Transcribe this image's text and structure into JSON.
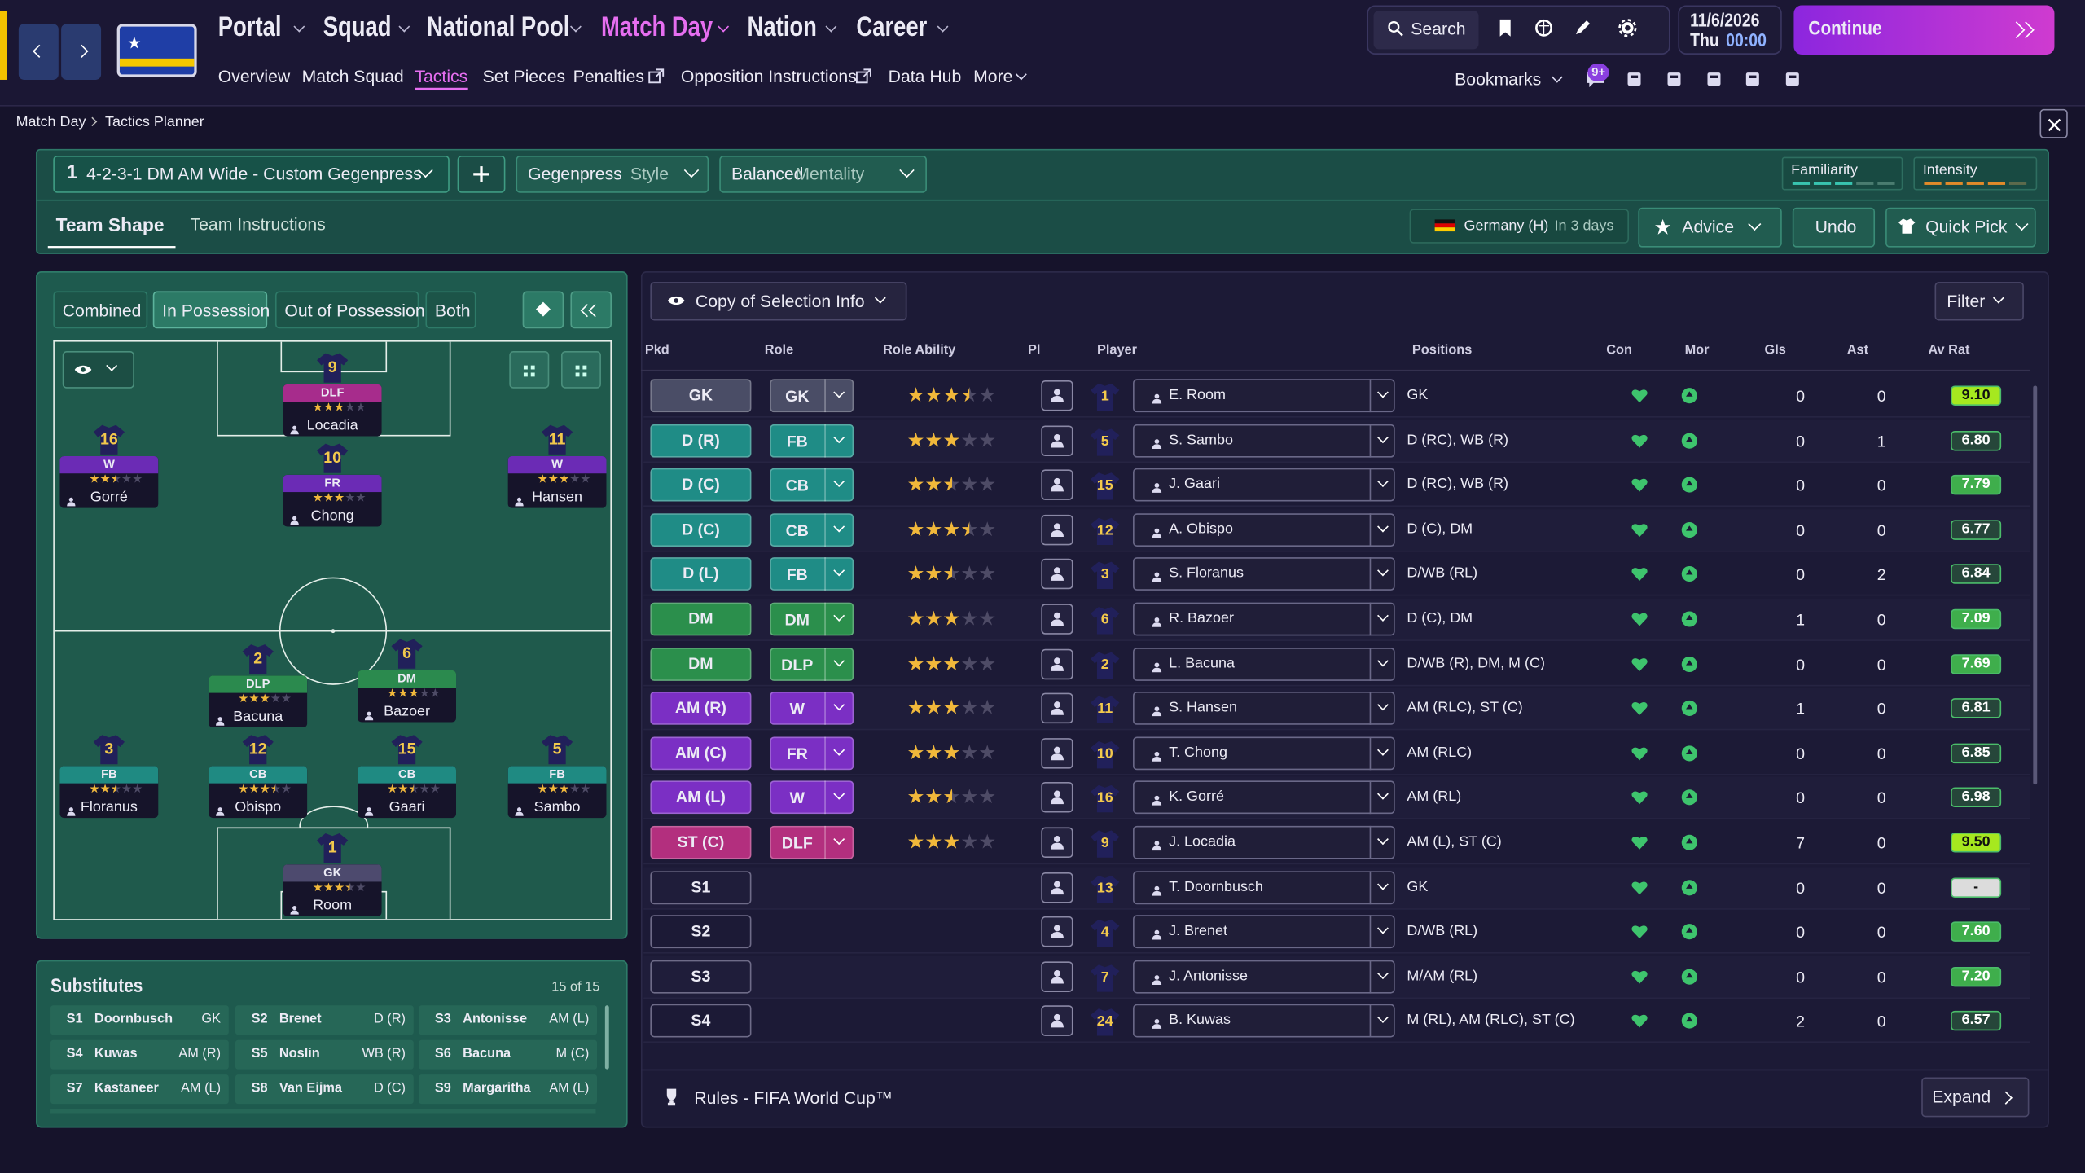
{
  "nav": {
    "menus": [
      "Portal",
      "Squad",
      "National Pool",
      "Match Day",
      "Nation",
      "Career"
    ],
    "active_menu": 3,
    "submenus": [
      "Overview",
      "Match Squad",
      "Tactics",
      "Set Pieces",
      "Penalties",
      "Opposition Instructions",
      "Data Hub",
      "More"
    ],
    "active_submenu": 2,
    "search": "Search",
    "date": "11/6/2026",
    "day": "Thu",
    "time": "00:00",
    "continue": "Continue",
    "bookmarks": "Bookmarks",
    "badge": "9+"
  },
  "breadcrumb": [
    "Match Day",
    "Tactics Planner"
  ],
  "tactic": {
    "slot": "1",
    "name": "4-2-3-1 DM AM Wide - Custom Gegenpress",
    "style_value": "Gegenpress",
    "style_label": "Style",
    "mentality_value": "Balanced",
    "mentality_label": "Mentality",
    "familiarity": "Familiarity",
    "intensity": "Intensity"
  },
  "tabs": [
    "Team Shape",
    "Team Instructions"
  ],
  "active_tab": 0,
  "fixture": {
    "opponent": "Germany (H)",
    "when": "In 3 days"
  },
  "actions": {
    "advice": "Advice",
    "undo": "Undo",
    "quick_pick": "Quick Pick"
  },
  "pitch": {
    "views": [
      "Combined",
      "In Possession",
      "Out of Possession",
      "Both"
    ],
    "active_view": 1,
    "players": [
      {
        "number": "9",
        "role": "DLF",
        "name": "Locadia",
        "stars": 3,
        "color": "#a72c8c"
      },
      {
        "number": "16",
        "role": "W",
        "name": "Gorré",
        "stars": 2.5,
        "color": "#6b2bb5"
      },
      {
        "number": "10",
        "role": "FR",
        "name": "Chong",
        "stars": 3,
        "color": "#6b2bb5"
      },
      {
        "number": "11",
        "role": "W",
        "name": "Hansen",
        "stars": 3,
        "color": "#6b2bb5"
      },
      {
        "number": "2",
        "role": "DLP",
        "name": "Bacuna",
        "stars": 3,
        "color": "#2b8a4e"
      },
      {
        "number": "6",
        "role": "DM",
        "name": "Bazoer",
        "stars": 3,
        "color": "#2b8a4e"
      },
      {
        "number": "3",
        "role": "FB",
        "name": "Floranus",
        "stars": 2.5,
        "color": "#1f8a82"
      },
      {
        "number": "12",
        "role": "CB",
        "name": "Obispo",
        "stars": 3.5,
        "color": "#1f8a82"
      },
      {
        "number": "15",
        "role": "CB",
        "name": "Gaari",
        "stars": 2.5,
        "color": "#1f8a82"
      },
      {
        "number": "5",
        "role": "FB",
        "name": "Sambo",
        "stars": 3,
        "color": "#1f8a82"
      },
      {
        "number": "1",
        "role": "GK",
        "name": "Room",
        "stars": 3.5,
        "color": "#4d4a6e"
      }
    ]
  },
  "substitutes": {
    "title": "Substitutes",
    "count": "15 of 15",
    "items": [
      {
        "slot": "S1",
        "name": "Doornbusch",
        "position": "GK"
      },
      {
        "slot": "S2",
        "name": "Brenet",
        "position": "D (R)"
      },
      {
        "slot": "S3",
        "name": "Antonisse",
        "position": "AM (L)"
      },
      {
        "slot": "S4",
        "name": "Kuwas",
        "position": "AM (R)"
      },
      {
        "slot": "S5",
        "name": "Noslin",
        "position": "WB (R)"
      },
      {
        "slot": "S6",
        "name": "Bacuna",
        "position": "M (C)"
      },
      {
        "slot": "S7",
        "name": "Kastaneer",
        "position": "AM (L)"
      },
      {
        "slot": "S8",
        "name": "Van Eijma",
        "position": "D (C)"
      },
      {
        "slot": "S9",
        "name": "Margaritha",
        "position": "AM (L)"
      }
    ]
  },
  "table": {
    "selector": "Copy of Selection Info",
    "filter": "Filter",
    "columns": [
      "Pkd",
      "Role",
      "Role Ability",
      "Pl",
      "Player",
      "Positions",
      "Con",
      "Mor",
      "Gls",
      "Ast",
      "Av Rat"
    ],
    "rows": [
      {
        "pkd": "GK",
        "color": "#4a4d66",
        "role": "GK",
        "ability": 3.5,
        "number": "1",
        "player": "E. Room",
        "positions": "GK",
        "gls": 0,
        "ast": 0,
        "rating": "9.10"
      },
      {
        "pkd": "D (R)",
        "color": "#1f8c86",
        "role": "FB",
        "ability": 3,
        "number": "5",
        "player": "S. Sambo",
        "positions": "D (RC), WB (R)",
        "gls": 0,
        "ast": 1,
        "rating": "6.80"
      },
      {
        "pkd": "D (C)",
        "color": "#1f8c86",
        "role": "CB",
        "ability": 2.5,
        "number": "15",
        "player": "J. Gaari",
        "positions": "D (RC), WB (R)",
        "gls": 0,
        "ast": 0,
        "rating": "7.79"
      },
      {
        "pkd": "D (C)",
        "color": "#1f8c86",
        "role": "CB",
        "ability": 3.5,
        "number": "12",
        "player": "A. Obispo",
        "positions": "D (C), DM",
        "gls": 0,
        "ast": 0,
        "rating": "6.77"
      },
      {
        "pkd": "D (L)",
        "color": "#1f8c86",
        "role": "FB",
        "ability": 2.5,
        "number": "3",
        "player": "S. Floranus",
        "positions": "D/WB (RL)",
        "gls": 0,
        "ast": 2,
        "rating": "6.84"
      },
      {
        "pkd": "DM",
        "color": "#2b8f4c",
        "role": "DM",
        "ability": 3,
        "number": "6",
        "player": "R. Bazoer",
        "positions": "D (C), DM",
        "gls": 1,
        "ast": 0,
        "rating": "7.09"
      },
      {
        "pkd": "DM",
        "color": "#2b8f4c",
        "role": "DLP",
        "ability": 3,
        "number": "2",
        "player": "L. Bacuna",
        "positions": "D/WB (R), DM, M (C)",
        "gls": 0,
        "ast": 0,
        "rating": "7.69"
      },
      {
        "pkd": "AM (R)",
        "color": "#7b2fc4",
        "role": "W",
        "ability": 3,
        "number": "11",
        "player": "S. Hansen",
        "positions": "AM (RLC), ST (C)",
        "gls": 1,
        "ast": 0,
        "rating": "6.81"
      },
      {
        "pkd": "AM (C)",
        "color": "#7b2fc4",
        "role": "FR",
        "ability": 3,
        "number": "10",
        "player": "T. Chong",
        "positions": "AM (RLC)",
        "gls": 0,
        "ast": 0,
        "rating": "6.85"
      },
      {
        "pkd": "AM (L)",
        "color": "#7b2fc4",
        "role": "W",
        "ability": 2.5,
        "number": "16",
        "player": "K. Gorré",
        "positions": "AM (RL)",
        "gls": 0,
        "ast": 0,
        "rating": "6.98"
      },
      {
        "pkd": "ST (C)",
        "color": "#b32f7e",
        "role": "DLF",
        "ability": 3,
        "number": "9",
        "player": "J. Locadia",
        "positions": "AM (L), ST (C)",
        "gls": 7,
        "ast": 0,
        "rating": "9.50"
      },
      {
        "pkd": "S1",
        "number": "13",
        "player": "T. Doornbusch",
        "positions": "GK",
        "gls": 0,
        "ast": 0,
        "rating": "-"
      },
      {
        "pkd": "S2",
        "number": "4",
        "player": "J. Brenet",
        "positions": "D/WB (RL)",
        "gls": 0,
        "ast": 0,
        "rating": "7.60"
      },
      {
        "pkd": "S3",
        "number": "7",
        "player": "J. Antonisse",
        "positions": "M/AM (RL)",
        "gls": 0,
        "ast": 0,
        "rating": "7.20"
      },
      {
        "pkd": "S4",
        "number": "24",
        "player": "B. Kuwas",
        "positions": "M (RL), AM (RLC), ST (C)",
        "gls": 2,
        "ast": 0,
        "rating": "6.57"
      }
    ]
  },
  "footer": {
    "rules": "Rules - FIFA World Cup™",
    "expand": "Expand"
  }
}
